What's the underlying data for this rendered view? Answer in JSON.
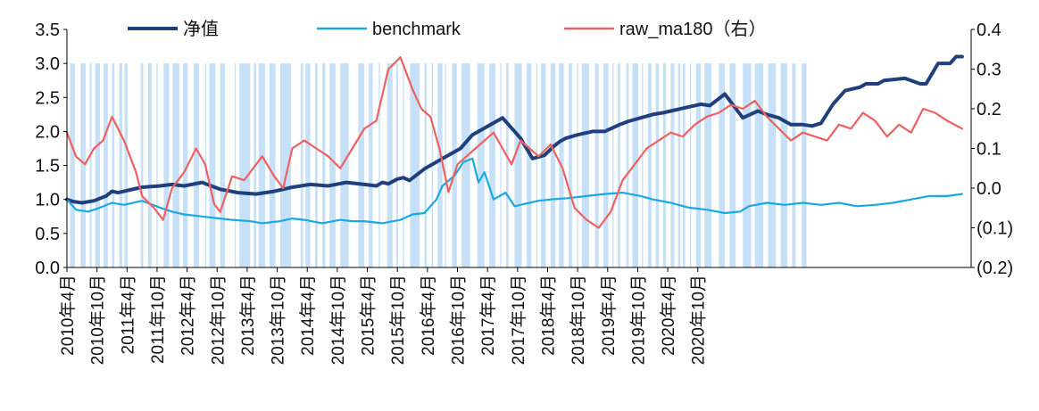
{
  "chart_data": {
    "type": "line",
    "x_axis": {
      "tick_labels": [
        "2010年4月",
        "2010年10月",
        "2011年4月",
        "2011年10月",
        "2012年4月",
        "2012年10月",
        "2013年4月",
        "2013年10月",
        "2014年4月",
        "2014年10月",
        "2015年4月",
        "2015年10月",
        "2016年4月",
        "2016年10月",
        "2017年4月",
        "2017年10月",
        "2018年4月",
        "2018年10月",
        "2019年4月",
        "2019年10月",
        "2020年4月",
        "2020年10月"
      ]
    },
    "y_left": {
      "ylim": [
        0,
        3.5
      ],
      "tick_labels": [
        "0.0",
        "0.5",
        "1.0",
        "1.5",
        "2.0",
        "2.5",
        "3.0",
        "3.5"
      ]
    },
    "y_right": {
      "ylim": [
        -0.2,
        0.4
      ],
      "tick_labels": [
        "(0.2)",
        "(0.1)",
        "0.0",
        "0.1",
        "0.2",
        "0.3",
        "0.4"
      ]
    },
    "legend": {
      "position": "top",
      "entries": [
        {
          "label": "净值",
          "color": "#1f3f7d"
        },
        {
          "label": "benchmark",
          "color": "#1aa8e0"
        },
        {
          "label": "raw_ma180（右）",
          "color": "#f06060"
        }
      ]
    },
    "signal_band": {
      "color": "#c6e0f7",
      "value": 3.0
    },
    "signal_periods": [
      [
        2010.3,
        2010.38
      ],
      [
        2010.48,
        2010.56
      ],
      [
        2010.63,
        2010.66
      ],
      [
        2010.72,
        2010.8
      ],
      [
        2010.86,
        2010.93
      ],
      [
        2011.0,
        2011.04
      ],
      [
        2011.12,
        2011.17
      ],
      [
        2011.21,
        2011.26
      ],
      [
        2011.48,
        2011.52
      ],
      [
        2011.6,
        2011.66
      ],
      [
        2011.74,
        2011.76
      ],
      [
        2011.86,
        2011.95
      ],
      [
        2012.01,
        2012.12
      ],
      [
        2012.18,
        2012.26
      ],
      [
        2012.36,
        2012.45
      ],
      [
        2012.55,
        2012.57
      ],
      [
        2012.62,
        2012.72
      ],
      [
        2012.8,
        2012.88
      ],
      [
        2013.04,
        2013.06
      ],
      [
        2013.12,
        2013.3
      ],
      [
        2013.36,
        2013.4
      ],
      [
        2013.44,
        2013.55
      ],
      [
        2013.62,
        2013.72
      ],
      [
        2013.8,
        2013.98
      ],
      [
        2014.14,
        2014.18
      ],
      [
        2014.22,
        2014.3
      ],
      [
        2014.38,
        2014.42
      ],
      [
        2014.5,
        2014.55
      ],
      [
        2014.62,
        2014.72
      ],
      [
        2014.8,
        2014.94
      ],
      [
        2015.1,
        2015.2
      ],
      [
        2015.27,
        2015.34
      ],
      [
        2015.44,
        2015.46
      ],
      [
        2015.58,
        2015.67
      ],
      [
        2015.73,
        2015.76
      ],
      [
        2015.84,
        2015.86
      ],
      [
        2015.96,
        2016.12
      ],
      [
        2016.2,
        2016.24
      ],
      [
        2016.32,
        2016.34
      ],
      [
        2016.42,
        2016.5
      ],
      [
        2016.54,
        2016.56
      ],
      [
        2016.66,
        2016.74
      ],
      [
        2016.82,
        2016.96
      ],
      [
        2017.08,
        2017.2
      ],
      [
        2017.28,
        2017.38
      ],
      [
        2017.46,
        2017.48
      ],
      [
        2017.56,
        2017.6
      ],
      [
        2017.7,
        2017.82
      ],
      [
        2017.9,
        2017.98
      ],
      [
        2018.06,
        2018.08
      ],
      [
        2018.14,
        2018.22
      ],
      [
        2018.3,
        2018.38
      ],
      [
        2018.44,
        2018.52
      ],
      [
        2018.6,
        2018.66
      ],
      [
        2018.74,
        2018.76
      ],
      [
        2018.82,
        2018.94
      ],
      [
        2019.04,
        2019.1
      ],
      [
        2019.18,
        2019.26
      ],
      [
        2019.33,
        2019.35
      ],
      [
        2019.42,
        2019.46
      ],
      [
        2019.56,
        2019.6
      ],
      [
        2019.66,
        2019.76
      ],
      [
        2019.82,
        2019.84
      ],
      [
        2019.92,
        2019.98
      ],
      [
        2020.05,
        2020.1
      ],
      [
        2020.17,
        2020.22
      ],
      [
        2020.3,
        2020.36
      ],
      [
        2020.42,
        2020.46
      ],
      [
        2020.5,
        2020.54
      ],
      [
        2020.62,
        2020.64
      ],
      [
        2020.72,
        2020.8
      ],
      [
        2020.86,
        2020.98
      ],
      [
        2021.1,
        2021.2
      ],
      [
        2021.28,
        2021.38
      ],
      [
        2021.5,
        2021.64
      ],
      [
        2021.7,
        2021.84
      ],
      [
        2021.92,
        2022.05
      ],
      [
        2022.13,
        2022.24
      ],
      [
        2022.32,
        2022.38
      ],
      [
        2022.48,
        2022.56
      ]
    ],
    "series": [
      {
        "name": "净值",
        "axis": "left",
        "color": "#1f3f7d",
        "x": [
          2010.25,
          2010.35,
          2010.5,
          2010.7,
          2010.9,
          2011.0,
          2011.1,
          2011.3,
          2011.5,
          2011.8,
          2012.0,
          2012.2,
          2012.5,
          2012.8,
          2013.1,
          2013.4,
          2013.7,
          2014.0,
          2014.3,
          2014.6,
          2014.9,
          2015.2,
          2015.4,
          2015.5,
          2015.6,
          2015.75,
          2015.85,
          2015.95,
          2016.2,
          2016.5,
          2016.8,
          2017.0,
          2017.2,
          2017.5,
          2017.8,
          2018.0,
          2018.2,
          2018.35,
          2018.45,
          2018.55,
          2018.75,
          2019.0,
          2019.2,
          2019.45,
          2019.6,
          2019.8,
          2020.0,
          2020.2,
          2020.3,
          2020.55,
          2020.8,
          2020.95,
          2021.2,
          2021.5,
          2021.75,
          2021.9,
          2022.1,
          2022.3,
          2022.5,
          2022.65,
          2022.8,
          2023.0,
          2023.2,
          2023.3,
          2023.45,
          2023.55,
          2023.75,
          2023.85,
          2024.2,
          2024.45,
          2024.55,
          2024.75,
          2024.95,
          2025.05,
          2025.15
        ],
        "values": [
          1.0,
          0.97,
          0.95,
          0.98,
          1.05,
          1.12,
          1.1,
          1.14,
          1.18,
          1.2,
          1.22,
          1.2,
          1.25,
          1.15,
          1.1,
          1.08,
          1.12,
          1.18,
          1.22,
          1.2,
          1.25,
          1.22,
          1.2,
          1.25,
          1.23,
          1.3,
          1.32,
          1.28,
          1.45,
          1.6,
          1.75,
          1.95,
          2.05,
          2.2,
          1.9,
          1.6,
          1.65,
          1.78,
          1.85,
          1.9,
          1.95,
          2.0,
          2.0,
          2.1,
          2.15,
          2.2,
          2.25,
          2.28,
          2.3,
          2.35,
          2.4,
          2.38,
          2.55,
          2.2,
          2.3,
          2.25,
          2.2,
          2.1,
          2.1,
          2.08,
          2.12,
          2.4,
          2.6,
          2.62,
          2.65,
          2.7,
          2.7,
          2.75,
          2.78,
          2.7,
          2.7,
          3.0,
          3.0,
          3.1,
          3.1
        ]
      },
      {
        "name": "benchmark",
        "axis": "left",
        "color": "#1aa8e0",
        "x": [
          2010.25,
          2010.4,
          2010.6,
          2010.8,
          2011.0,
          2011.2,
          2011.5,
          2011.8,
          2012.0,
          2012.2,
          2012.5,
          2012.8,
          2013.0,
          2013.3,
          2013.5,
          2013.8,
          2014.0,
          2014.2,
          2014.5,
          2014.8,
          2015.0,
          2015.2,
          2015.5,
          2015.8,
          2016.0,
          2016.2,
          2016.4,
          2016.5,
          2016.7,
          2016.85,
          2017.0,
          2017.1,
          2017.2,
          2017.35,
          2017.45,
          2017.55,
          2017.7,
          2017.8,
          2017.95,
          2018.1,
          2018.3,
          2018.6,
          2018.9,
          2019.2,
          2019.5,
          2019.8,
          2020.0,
          2020.3,
          2020.6,
          2020.9,
          2021.2,
          2021.45,
          2021.6,
          2021.9,
          2022.2,
          2022.5,
          2022.8,
          2023.1,
          2023.4,
          2023.7,
          2024.0,
          2024.3,
          2024.6,
          2024.9,
          2025.15
        ],
        "values": [
          1.0,
          0.85,
          0.82,
          0.88,
          0.95,
          0.92,
          0.98,
          0.88,
          0.82,
          0.78,
          0.75,
          0.72,
          0.7,
          0.68,
          0.65,
          0.68,
          0.72,
          0.7,
          0.65,
          0.7,
          0.68,
          0.68,
          0.65,
          0.7,
          0.78,
          0.8,
          1.0,
          1.2,
          1.35,
          1.55,
          1.6,
          1.25,
          1.4,
          1.0,
          1.05,
          1.1,
          0.9,
          0.92,
          0.95,
          0.98,
          1.0,
          1.02,
          1.05,
          1.08,
          1.1,
          1.05,
          1.0,
          0.95,
          0.88,
          0.85,
          0.8,
          0.82,
          0.9,
          0.95,
          0.92,
          0.95,
          0.92,
          0.95,
          0.9,
          0.92,
          0.95,
          1.0,
          1.05,
          1.05,
          1.08
        ]
      },
      {
        "name": "raw_ma180（右）",
        "axis": "right",
        "color": "#f06060",
        "x": [
          2010.25,
          2010.4,
          2010.55,
          2010.7,
          2010.85,
          2011.0,
          2011.2,
          2011.4,
          2011.5,
          2011.7,
          2011.85,
          2012.0,
          2012.2,
          2012.4,
          2012.55,
          2012.7,
          2012.8,
          2013.0,
          2013.2,
          2013.4,
          2013.5,
          2013.7,
          2013.85,
          2014.0,
          2014.2,
          2014.4,
          2014.6,
          2014.8,
          2015.0,
          2015.2,
          2015.4,
          2015.6,
          2015.8,
          2016.0,
          2016.15,
          2016.3,
          2016.45,
          2016.6,
          2016.75,
          2016.9,
          2017.05,
          2017.2,
          2017.35,
          2017.5,
          2017.65,
          2017.8,
          2017.95,
          2018.1,
          2018.3,
          2018.5,
          2018.7,
          2018.9,
          2019.1,
          2019.3,
          2019.5,
          2019.7,
          2019.9,
          2020.1,
          2020.3,
          2020.5,
          2020.7,
          2020.9,
          2021.1,
          2021.3,
          2021.5,
          2021.7,
          2021.9,
          2022.1,
          2022.3,
          2022.5,
          2022.7,
          2022.9,
          2023.1,
          2023.3,
          2023.5,
          2023.7,
          2023.9,
          2024.1,
          2024.3,
          2024.5,
          2024.7,
          2024.9,
          2025.15
        ],
        "values": [
          0.14,
          0.08,
          0.06,
          0.1,
          0.12,
          0.18,
          0.12,
          0.04,
          -0.02,
          -0.05,
          -0.08,
          0.0,
          0.04,
          0.1,
          0.06,
          -0.04,
          -0.06,
          0.03,
          0.02,
          0.06,
          0.08,
          0.03,
          0.0,
          0.1,
          0.12,
          0.1,
          0.08,
          0.05,
          0.1,
          0.15,
          0.17,
          0.3,
          0.33,
          0.25,
          0.2,
          0.18,
          0.1,
          -0.01,
          0.06,
          0.08,
          0.1,
          0.12,
          0.14,
          0.1,
          0.06,
          0.12,
          0.1,
          0.08,
          0.11,
          0.05,
          -0.05,
          -0.08,
          -0.1,
          -0.06,
          0.02,
          0.06,
          0.1,
          0.12,
          0.14,
          0.13,
          0.16,
          0.18,
          0.19,
          0.21,
          0.2,
          0.22,
          0.18,
          0.15,
          0.12,
          0.14,
          0.13,
          0.12,
          0.16,
          0.15,
          0.19,
          0.17,
          0.13,
          0.16,
          0.14,
          0.2,
          0.19,
          0.17,
          0.15
        ]
      }
    ]
  }
}
